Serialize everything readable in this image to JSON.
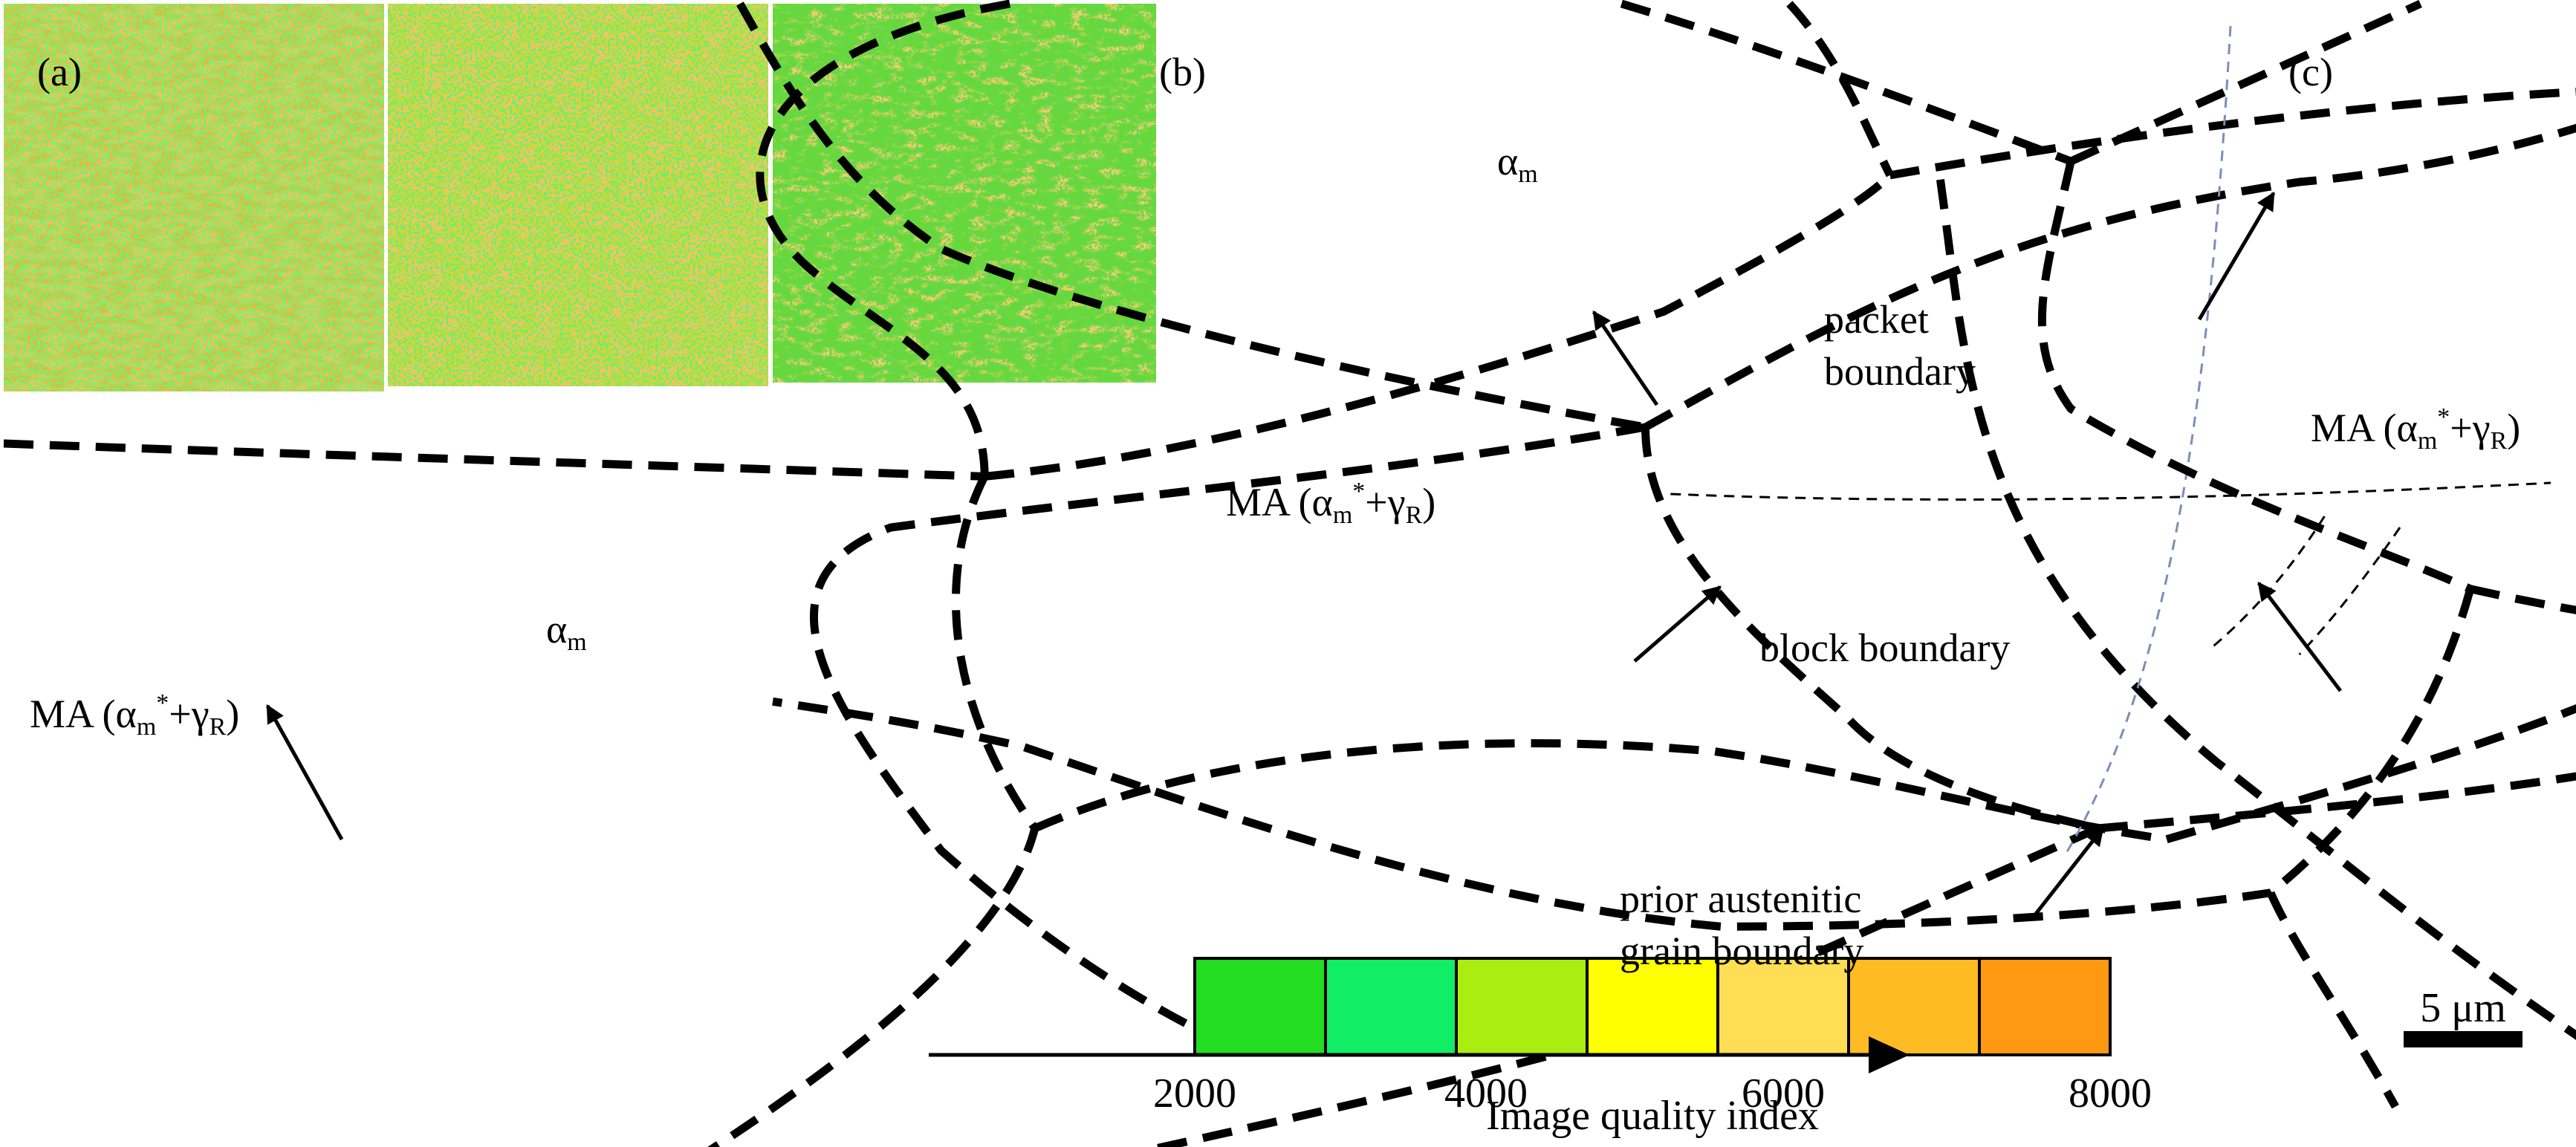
{
  "panels": {
    "a": {
      "label": "(a)",
      "alpha_m": {
        "base": "α",
        "sub": "m"
      },
      "ma": {
        "prefix": "MA (",
        "a": "α",
        "a_sub": "m",
        "a_sup": "*",
        "plus": "+γ",
        "g_sub": "R",
        "suffix": ")"
      }
    },
    "b": {
      "label": "(b)",
      "alpha_m": {
        "base": "α",
        "sub": "m"
      },
      "ma": {
        "prefix": "MA (",
        "a": "α",
        "a_sub": "m",
        "a_sup": "*",
        "plus": "+γ",
        "g_sub": "R",
        "suffix": ")"
      },
      "packet_line1": "packet",
      "packet_line2": "boundary",
      "block_boundary": "block boundary",
      "prior_line1": "prior austenitic",
      "prior_line2": "grain boundary"
    },
    "c": {
      "label": "(c)",
      "ma": {
        "prefix": "MA (",
        "a": "α",
        "a_sub": "m",
        "a_sup": "*",
        "plus": "+γ",
        "g_sub": "R",
        "suffix": ")"
      }
    }
  },
  "colorbar": {
    "title": "Image quality index",
    "ticks": [
      "2000",
      "4000",
      "6000",
      "8000"
    ],
    "colors": [
      "#22dd22",
      "#11ee66",
      "#aaee11",
      "#ffff00",
      "#ffdd55",
      "#ffbb22",
      "#ff9911"
    ]
  },
  "scalebar": {
    "label": "5 μm"
  }
}
